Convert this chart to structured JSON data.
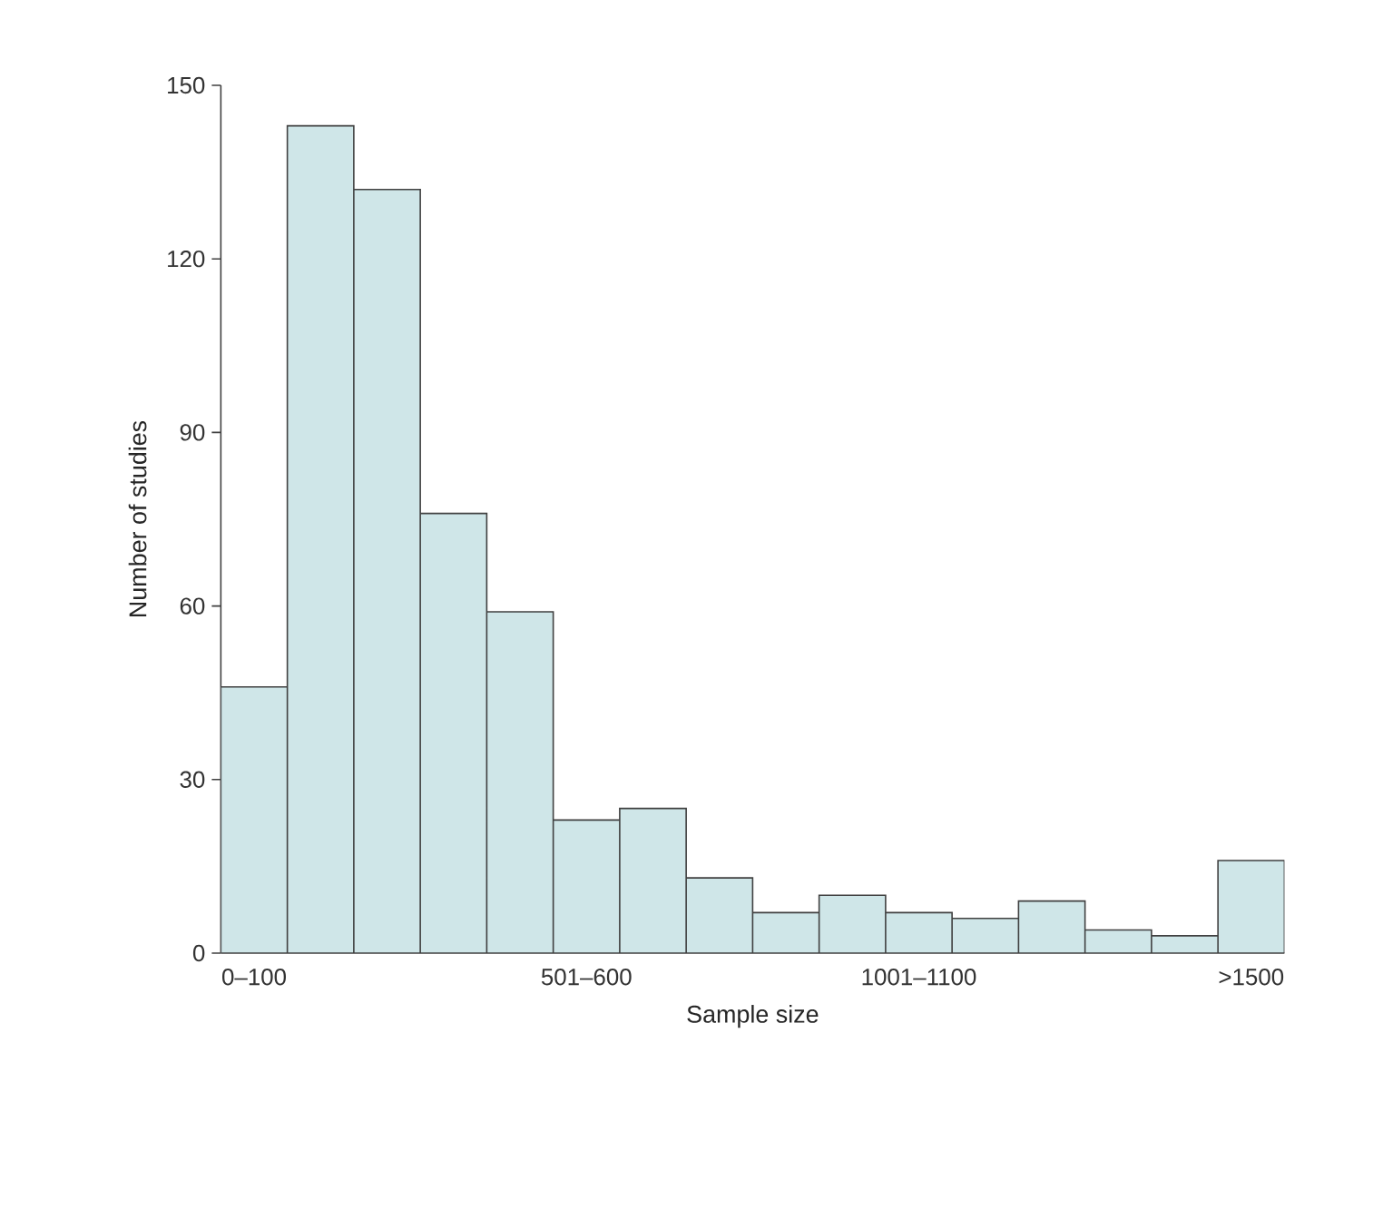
{
  "chart_data": {
    "type": "bar",
    "categories": [
      "0–100",
      null,
      null,
      null,
      null,
      "501–600",
      null,
      null,
      null,
      null,
      "1001–1100",
      null,
      null,
      null,
      null,
      ">1500"
    ],
    "values": [
      46,
      143,
      132,
      76,
      59,
      23,
      25,
      13,
      7,
      10,
      7,
      6,
      9,
      4,
      3,
      16
    ],
    "color": "#cfe6e8",
    "xlabel": "Sample size",
    "ylabel": "Number of studies",
    "ylim": [
      0,
      150
    ],
    "yticks": [
      0,
      30,
      60,
      90,
      120,
      150
    ]
  }
}
